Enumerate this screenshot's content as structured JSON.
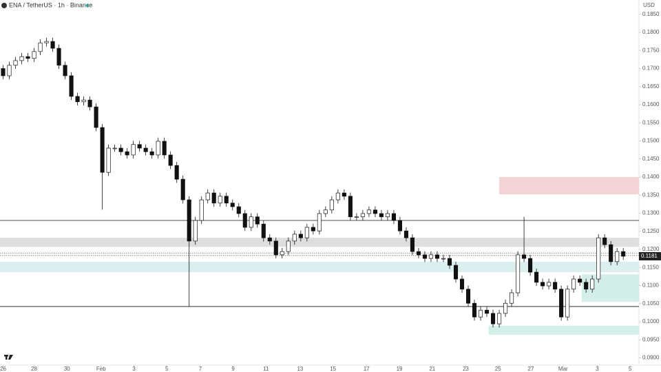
{
  "chart_data": {
    "type": "candlestick",
    "title": "ENA / TetherUS · 1h · Binance",
    "currency": "USD",
    "color_up": "#ffffff",
    "color_down": "#111111",
    "xlim": [
      -0.5,
      101.2
    ],
    "ylim": [
      0.088,
      0.188
    ],
    "xticks": [
      {
        "value": 0,
        "label": "26"
      },
      {
        "value": 5,
        "label": "28"
      },
      {
        "value": 10.3,
        "label": "30"
      },
      {
        "value": 15.8,
        "label": "Feb"
      },
      {
        "value": 21.1,
        "label": "3"
      },
      {
        "value": 26.4,
        "label": "5"
      },
      {
        "value": 31.8,
        "label": "7"
      },
      {
        "value": 37.1,
        "label": "9"
      },
      {
        "value": 42.4,
        "label": "11"
      },
      {
        "value": 47.9,
        "label": "13"
      },
      {
        "value": 53.2,
        "label": "15"
      },
      {
        "value": 58.6,
        "label": "17"
      },
      {
        "value": 63.9,
        "label": "19"
      },
      {
        "value": 69.2,
        "label": "21"
      },
      {
        "value": 74.6,
        "label": "23"
      },
      {
        "value": 79.8,
        "label": "25"
      },
      {
        "value": 85.1,
        "label": "27"
      },
      {
        "value": 90.3,
        "label": "Mar"
      },
      {
        "value": 95.8,
        "label": "3"
      },
      {
        "value": 101.1,
        "label": "5"
      }
    ],
    "yticks": [
      {
        "value": 0.09,
        "label": "0.0900"
      },
      {
        "value": 0.095,
        "label": "0.0950"
      },
      {
        "value": 0.1,
        "label": "0.1000"
      },
      {
        "value": 0.105,
        "label": "0.1050"
      },
      {
        "value": 0.11,
        "label": "0.1100"
      },
      {
        "value": 0.115,
        "label": "0.1150"
      },
      {
        "value": 0.12,
        "label": "0.1200"
      },
      {
        "value": 0.125,
        "label": "0.1250"
      },
      {
        "value": 0.13,
        "label": "0.1300"
      },
      {
        "value": 0.135,
        "label": "0.1350"
      },
      {
        "value": 0.14,
        "label": "0.1400"
      },
      {
        "value": 0.145,
        "label": "0.1450"
      },
      {
        "value": 0.15,
        "label": "0.1500"
      },
      {
        "value": 0.155,
        "label": "0.1550"
      },
      {
        "value": 0.16,
        "label": "0.1600"
      },
      {
        "value": 0.165,
        "label": "0.1650"
      },
      {
        "value": 0.17,
        "label": "0.1700"
      },
      {
        "value": 0.175,
        "label": "0.1750"
      },
      {
        "value": 0.18,
        "label": "0.1800"
      },
      {
        "value": 0.185,
        "label": "0.1850"
      }
    ],
    "open": [
      0.17,
      0.168,
      0.1709,
      0.1722,
      0.1733,
      0.1728,
      0.1747,
      0.1771,
      0.1775,
      0.1756,
      0.1709,
      0.168,
      0.1623,
      0.1608,
      0.1613,
      0.1594,
      0.1537,
      0.1413,
      0.148,
      0.148,
      0.147,
      0.1461,
      0.149,
      0.148,
      0.147,
      0.1461,
      0.1499,
      0.1461,
      0.1432,
      0.1394,
      0.1337,
      0.1223,
      0.128,
      0.1337,
      0.1356,
      0.1328,
      0.1347,
      0.1328,
      0.1318,
      0.1299,
      0.1261,
      0.129,
      0.127,
      0.1232,
      0.1223,
      0.1185,
      0.1194,
      0.1223,
      0.1242,
      0.1232,
      0.1261,
      0.1251,
      0.1299,
      0.1309,
      0.1337,
      0.1356,
      0.1347,
      0.129,
      0.129,
      0.1299,
      0.1309,
      0.1299,
      0.129,
      0.1299,
      0.128,
      0.1251,
      0.1232,
      0.1194,
      0.1185,
      0.1175,
      0.1185,
      0.1175,
      0.1175,
      0.1156,
      0.1118,
      0.109,
      0.1051,
      0.1013,
      0.1032,
      0.1023,
      0.0994,
      0.1023,
      0.1051,
      0.108,
      0.1185,
      0.1175,
      0.1137,
      0.1109,
      0.1099,
      0.1109,
      0.109,
      0.1013,
      0.109,
      0.1118,
      0.1109,
      0.109,
      0.1118,
      0.1232,
      0.1213,
      0.1166,
      0.1194
    ],
    "high": [
      0.171,
      0.1719,
      0.1732,
      0.1743,
      0.1743,
      0.1757,
      0.1781,
      0.1785,
      0.1785,
      0.1766,
      0.1719,
      0.169,
      0.1633,
      0.1623,
      0.1623,
      0.1604,
      0.1547,
      0.149,
      0.149,
      0.149,
      0.148,
      0.15,
      0.15,
      0.149,
      0.148,
      0.1509,
      0.1509,
      0.1471,
      0.1442,
      0.1404,
      0.1347,
      0.129,
      0.1347,
      0.1366,
      0.1366,
      0.1357,
      0.1357,
      0.1338,
      0.1328,
      0.1309,
      0.13,
      0.13,
      0.128,
      0.1242,
      0.1233,
      0.1204,
      0.1233,
      0.1252,
      0.1252,
      0.1271,
      0.1271,
      0.1309,
      0.1319,
      0.1347,
      0.1366,
      0.1366,
      0.1357,
      0.13,
      0.1309,
      0.1319,
      0.1319,
      0.1309,
      0.1309,
      0.1309,
      0.129,
      0.1261,
      0.1242,
      0.1204,
      0.1195,
      0.1195,
      0.1195,
      0.1185,
      0.1185,
      0.1166,
      0.1128,
      0.11,
      0.1061,
      0.1042,
      0.1042,
      0.1033,
      0.1033,
      0.1061,
      0.109,
      0.1195,
      0.129,
      0.1185,
      0.1147,
      0.1119,
      0.1119,
      0.1119,
      0.11,
      0.11,
      0.1128,
      0.1128,
      0.1119,
      0.1128,
      0.1242,
      0.1242,
      0.1223,
      0.1204,
      0.1204
    ],
    "low": [
      0.167,
      0.167,
      0.1699,
      0.1712,
      0.1718,
      0.1718,
      0.1737,
      0.1761,
      0.1746,
      0.1699,
      0.167,
      0.1613,
      0.1598,
      0.1598,
      0.1584,
      0.1527,
      0.131,
      0.1403,
      0.147,
      0.146,
      0.1451,
      0.1451,
      0.147,
      0.146,
      0.1451,
      0.1451,
      0.1451,
      0.1422,
      0.1384,
      0.1327,
      0.1042,
      0.1213,
      0.127,
      0.1327,
      0.1318,
      0.1318,
      0.1318,
      0.1308,
      0.1289,
      0.1251,
      0.1251,
      0.126,
      0.1222,
      0.1213,
      0.1175,
      0.1175,
      0.1184,
      0.1213,
      0.1222,
      0.1222,
      0.1241,
      0.1241,
      0.1289,
      0.1299,
      0.1327,
      0.1337,
      0.128,
      0.128,
      0.128,
      0.1289,
      0.1289,
      0.128,
      0.128,
      0.127,
      0.1241,
      0.1222,
      0.1184,
      0.1175,
      0.1165,
      0.1165,
      0.1165,
      0.1165,
      0.1146,
      0.1108,
      0.108,
      0.1041,
      0.1003,
      0.1003,
      0.1013,
      0.0984,
      0.0984,
      0.1013,
      0.1041,
      0.107,
      0.1165,
      0.1127,
      0.1099,
      0.1089,
      0.1089,
      0.108,
      0.1003,
      0.1003,
      0.108,
      0.1099,
      0.108,
      0.108,
      0.1108,
      0.1203,
      0.1156,
      0.1156,
      0.1171
    ],
    "close": [
      0.168,
      0.1709,
      0.1722,
      0.1733,
      0.1728,
      0.1747,
      0.1771,
      0.1775,
      0.1756,
      0.1709,
      0.168,
      0.1623,
      0.1608,
      0.1613,
      0.1594,
      0.1537,
      0.1413,
      0.148,
      0.148,
      0.147,
      0.1461,
      0.149,
      0.148,
      0.147,
      0.1461,
      0.1499,
      0.1461,
      0.1432,
      0.1394,
      0.1337,
      0.1223,
      0.128,
      0.1337,
      0.1356,
      0.1328,
      0.1347,
      0.1328,
      0.1318,
      0.1299,
      0.1261,
      0.129,
      0.127,
      0.1232,
      0.1223,
      0.1185,
      0.1194,
      0.1223,
      0.1242,
      0.1232,
      0.1261,
      0.1251,
      0.1299,
      0.1309,
      0.1337,
      0.1356,
      0.1347,
      0.129,
      0.129,
      0.1299,
      0.1309,
      0.1299,
      0.129,
      0.1299,
      0.128,
      0.1251,
      0.1232,
      0.1194,
      0.1185,
      0.1175,
      0.1185,
      0.1175,
      0.1175,
      0.1156,
      0.1118,
      0.109,
      0.1051,
      0.1013,
      0.1032,
      0.1023,
      0.0994,
      0.1023,
      0.1051,
      0.108,
      0.1185,
      0.1175,
      0.1137,
      0.1109,
      0.1099,
      0.1109,
      0.109,
      0.1013,
      0.109,
      0.1118,
      0.1109,
      0.109,
      0.1118,
      0.1232,
      0.1213,
      0.1166,
      0.1194,
      0.1181
    ],
    "zones": [
      {
        "start": 80,
        "from": 0.1352,
        "to": 0.14,
        "color": "#f2d3d6"
      },
      {
        "start": -0.5,
        "from": 0.1207,
        "to": 0.1232,
        "color": "#dedede"
      },
      {
        "start": -0.5,
        "from": 0.1137,
        "to": 0.1166,
        "color": "#dcefef"
      },
      {
        "start": 93.3,
        "from": 0.1055,
        "to": 0.1131,
        "color": "#d4eee9"
      },
      {
        "start": 78.3,
        "from": 0.0964,
        "to": 0.0989,
        "color": "#d4eee9"
      }
    ],
    "levels": [
      0.128,
      0.1042
    ],
    "dotted_levels": [
      0.119,
      0.1183
    ]
  }
}
